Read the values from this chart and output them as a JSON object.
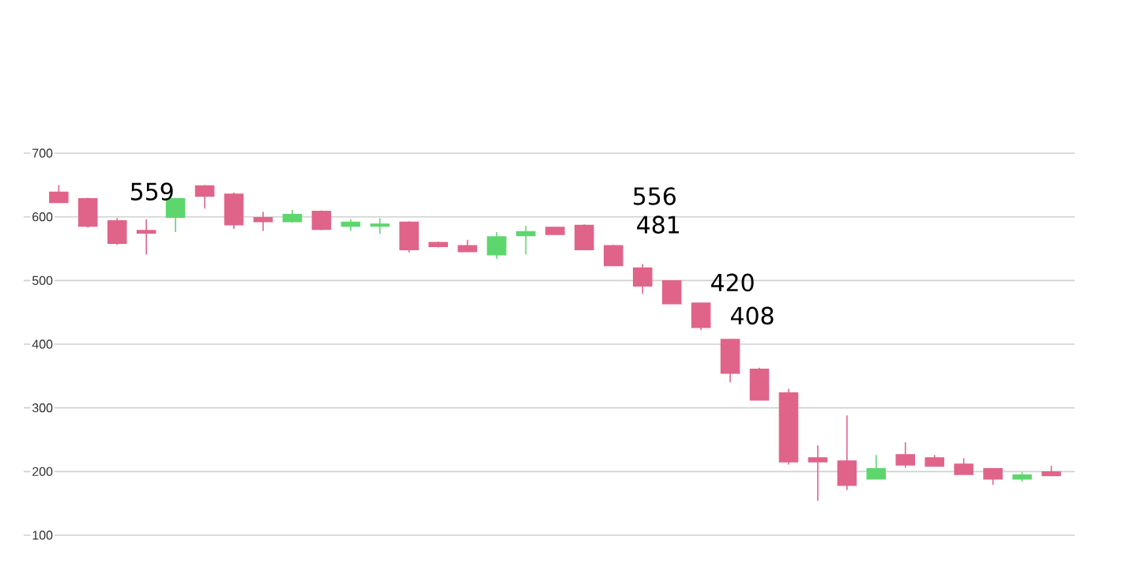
{
  "chart_data": {
    "type": "candlestick",
    "categories": [
      null,
      null,
      null,
      null,
      null,
      null,
      null,
      null,
      null,
      null,
      null,
      null,
      null,
      null,
      null,
      null,
      null,
      null,
      null,
      null,
      null,
      null,
      null,
      null,
      null,
      null,
      null,
      null,
      null,
      null,
      null,
      null,
      null,
      null,
      null
    ],
    "ohlc": [
      [
        638,
        650,
        622,
        623
      ],
      [
        628,
        630,
        583,
        586
      ],
      [
        593,
        598,
        556,
        559
      ],
      [
        578,
        596,
        541,
        575
      ],
      [
        600,
        630,
        576,
        628
      ],
      [
        648,
        650,
        613,
        633
      ],
      [
        635,
        638,
        581,
        588
      ],
      [
        598,
        608,
        578,
        593
      ],
      [
        593,
        611,
        591,
        603
      ],
      [
        608,
        610,
        579,
        581
      ],
      [
        586,
        596,
        578,
        591
      ],
      [
        586,
        598,
        573,
        588
      ],
      [
        591,
        593,
        544,
        549
      ],
      [
        559,
        561,
        552,
        554
      ],
      [
        554,
        564,
        546,
        546
      ],
      [
        541,
        576,
        534,
        568
      ],
      [
        571,
        586,
        541,
        576
      ],
      [
        583,
        584,
        573,
        573
      ],
      [
        586,
        588,
        549,
        549
      ],
      [
        554,
        556,
        524,
        524
      ],
      [
        519,
        526,
        479,
        492
      ],
      [
        499,
        500,
        464,
        464
      ],
      [
        464,
        465,
        422,
        427
      ],
      [
        407,
        408,
        340,
        355
      ],
      [
        360,
        363,
        313,
        313
      ],
      [
        323,
        330,
        211,
        216
      ],
      [
        221,
        241,
        154,
        216
      ],
      [
        216,
        288,
        171,
        179
      ],
      [
        189,
        226,
        189,
        204
      ],
      [
        226,
        246,
        206,
        211
      ],
      [
        221,
        226,
        209,
        209
      ],
      [
        211,
        221,
        196,
        196
      ],
      [
        204,
        204,
        179,
        189
      ],
      [
        189,
        199,
        184,
        194
      ],
      [
        199,
        209,
        194,
        194
      ]
    ],
    "colors": [
      "#e0648a",
      "#e0648a",
      "#e0648a",
      "#e0648a",
      "#5ed66e",
      "#e0648a",
      "#e0648a",
      "#e0648a",
      "#5ed66e",
      "#e0648a",
      "#5ed66e",
      "#5ed66e",
      "#e0648a",
      "#e0648a",
      "#e0648a",
      "#5ed66e",
      "#5ed66e",
      "#e0648a",
      "#e0648a",
      "#e0648a",
      "#e0648a",
      "#e0648a",
      "#e0648a",
      "#e0648a",
      "#e0648a",
      "#e0648a",
      "#e0648a",
      "#e0648a",
      "#5ed66e",
      "#e0648a",
      "#e0648a",
      "#e0648a",
      "#e0648a",
      "#5ed66e",
      "#e0648a"
    ],
    "ylim": [
      100,
      700
    ],
    "yticks": [
      100,
      200,
      300,
      400,
      500,
      600,
      700
    ],
    "tick_labels": "y",
    "grid": "y",
    "annotations": [
      "559",
      "556",
      "481",
      "420",
      "408"
    ]
  }
}
